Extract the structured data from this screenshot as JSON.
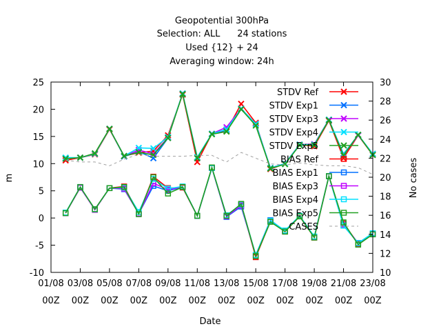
{
  "chart_data": {
    "type": "line",
    "title_lines": [
      "Geopotential 300hPa",
      "Selection: ALL      24 stations",
      "Used {12} + 24",
      "Averaging window: 24h"
    ],
    "xlabel": "Date",
    "ylabel": "m",
    "y2label": "No cases",
    "ylim": [
      -10,
      25
    ],
    "y2lim": [
      10,
      30
    ],
    "yticks": [
      -10,
      -5,
      0,
      5,
      10,
      15,
      20,
      25
    ],
    "y2ticks": [
      10,
      12,
      14,
      16,
      18,
      20,
      22,
      24,
      26,
      28,
      30
    ],
    "xticks": [
      {
        "x": 1,
        "line1": "01/08",
        "line2": "00Z"
      },
      {
        "x": 3,
        "line1": "03/08",
        "line2": "00Z"
      },
      {
        "x": 5,
        "line1": "05/08",
        "line2": "00Z"
      },
      {
        "x": 7,
        "line1": "07/08",
        "line2": "00Z"
      },
      {
        "x": 9,
        "line1": "09/08",
        "line2": "00Z"
      },
      {
        "x": 11,
        "line1": "11/08",
        "line2": "00Z"
      },
      {
        "x": 13,
        "line1": "13/08",
        "line2": "00Z"
      },
      {
        "x": 15,
        "line1": "15/08",
        "line2": "00Z"
      },
      {
        "x": 17,
        "line1": "17/08",
        "line2": "00Z"
      },
      {
        "x": 19,
        "line1": "19/08",
        "line2": "00Z"
      },
      {
        "x": 21,
        "line1": "21/08",
        "line2": "00Z"
      },
      {
        "x": 23,
        "line1": "23/08",
        "line2": "00Z"
      }
    ],
    "xlim": [
      1,
      23
    ],
    "grid": false,
    "legend_position": "top-right",
    "x": [
      2,
      3,
      4,
      5,
      6,
      7,
      8,
      9,
      10,
      11,
      12,
      13,
      14,
      15,
      16,
      17,
      18,
      19,
      20,
      21,
      22,
      23
    ],
    "series": [
      {
        "name": "STDV Ref",
        "color": "#ff0000",
        "marker": "x",
        "axis": "y",
        "values": [
          10.6,
          11.1,
          11.7,
          16.3,
          11.4,
          12.0,
          12.3,
          15.2,
          22.7,
          10.3,
          15.5,
          16.0,
          21.0,
          17.5,
          9.0,
          10.0,
          13.5,
          13.2,
          17.9,
          11.0,
          15.2,
          11.6
        ]
      },
      {
        "name": "STDV Exp1",
        "color": "#0070ff",
        "marker": "x",
        "axis": "y",
        "values": [
          11.0,
          11.1,
          11.8,
          16.4,
          11.3,
          12.2,
          11.0,
          14.7,
          22.9,
          11.0,
          15.5,
          16.2,
          20.0,
          17.3,
          9.2,
          10.0,
          13.5,
          13.5,
          18.0,
          11.8,
          15.2,
          11.8
        ]
      },
      {
        "name": "STDV Exp3",
        "color": "#c000ff",
        "marker": "x",
        "axis": "y",
        "values": [
          10.9,
          11.1,
          11.8,
          16.4,
          11.4,
          12.5,
          11.8,
          14.8,
          22.9,
          11.0,
          15.5,
          16.7,
          20.1,
          17.3,
          9.2,
          10.0,
          13.5,
          13.6,
          18.1,
          11.5,
          15.2,
          11.8
        ]
      },
      {
        "name": "STDV Exp4",
        "color": "#00e0ff",
        "marker": "x",
        "axis": "y",
        "values": [
          11.1,
          11.1,
          11.8,
          16.4,
          11.4,
          12.9,
          12.8,
          14.9,
          22.9,
          11.2,
          15.5,
          16.3,
          20.1,
          17.3,
          9.2,
          10.0,
          13.5,
          13.5,
          18.1,
          11.7,
          15.3,
          11.8
        ]
      },
      {
        "name": "STDV Exp5",
        "color": "#20a020",
        "marker": "x",
        "axis": "y",
        "values": [
          10.9,
          11.1,
          11.9,
          16.4,
          11.4,
          12.1,
          11.6,
          14.7,
          22.8,
          11.0,
          15.4,
          15.9,
          20.0,
          17.0,
          9.1,
          9.9,
          13.4,
          13.4,
          18.0,
          11.5,
          15.3,
          11.6
        ]
      },
      {
        "name": "BIAS Ref",
        "color": "#ff0000",
        "marker": "square",
        "axis": "y",
        "values": [
          0.9,
          5.6,
          1.6,
          5.5,
          5.8,
          0.8,
          7.6,
          5.5,
          5.6,
          0.4,
          9.2,
          0.3,
          2.5,
          -7.2,
          -0.6,
          -2.5,
          0.3,
          -3.6,
          7.7,
          -1.0,
          -4.7,
          -3.0
        ]
      },
      {
        "name": "BIAS Exp1",
        "color": "#0070ff",
        "marker": "square",
        "axis": "y",
        "values": [
          0.9,
          5.6,
          1.6,
          5.5,
          5.3,
          0.8,
          5.9,
          5.0,
          5.7,
          0.4,
          9.2,
          0.2,
          2.1,
          -6.8,
          -0.4,
          -2.4,
          0.4,
          -3.5,
          7.7,
          -1.4,
          -4.6,
          -2.9
        ]
      },
      {
        "name": "BIAS Exp3",
        "color": "#c000ff",
        "marker": "square",
        "axis": "y",
        "values": [
          0.9,
          5.6,
          1.5,
          5.5,
          5.4,
          0.8,
          6.4,
          5.2,
          5.7,
          0.4,
          9.2,
          0.3,
          2.3,
          -6.9,
          -0.5,
          -2.4,
          0.3,
          -3.5,
          7.7,
          -1.2,
          -4.6,
          -2.9
        ]
      },
      {
        "name": "BIAS Exp4",
        "color": "#00e0ff",
        "marker": "square",
        "axis": "y",
        "values": [
          1.0,
          5.7,
          1.6,
          5.5,
          5.6,
          1.1,
          7.2,
          5.4,
          5.8,
          0.4,
          9.2,
          0.5,
          2.5,
          -6.8,
          -0.5,
          -2.3,
          0.4,
          -3.4,
          7.7,
          -1.4,
          -4.6,
          -2.8
        ]
      },
      {
        "name": "BIAS Exp5",
        "color": "#20a020",
        "marker": "square",
        "axis": "y",
        "values": [
          0.9,
          5.7,
          1.6,
          5.5,
          5.7,
          0.7,
          7.5,
          4.5,
          5.7,
          0.4,
          9.3,
          0.4,
          2.6,
          -7.0,
          -0.7,
          -2.5,
          0.3,
          -3.6,
          7.7,
          -0.8,
          -4.9,
          -3.0
        ]
      },
      {
        "name": "CASES",
        "color": "#a0a0a0",
        "marker": "none",
        "dash": "4,4",
        "axis": "y2",
        "values": [
          21.8,
          21.6,
          21.6,
          21.2,
          21.9,
          22.4,
          22.2,
          22.2,
          22.2,
          22.3,
          22.3,
          21.6,
          22.6,
          22.0,
          21.4,
          21.3,
          21.5,
          21.3,
          21.2,
          21.2,
          21.0,
          20.3
        ]
      }
    ]
  }
}
